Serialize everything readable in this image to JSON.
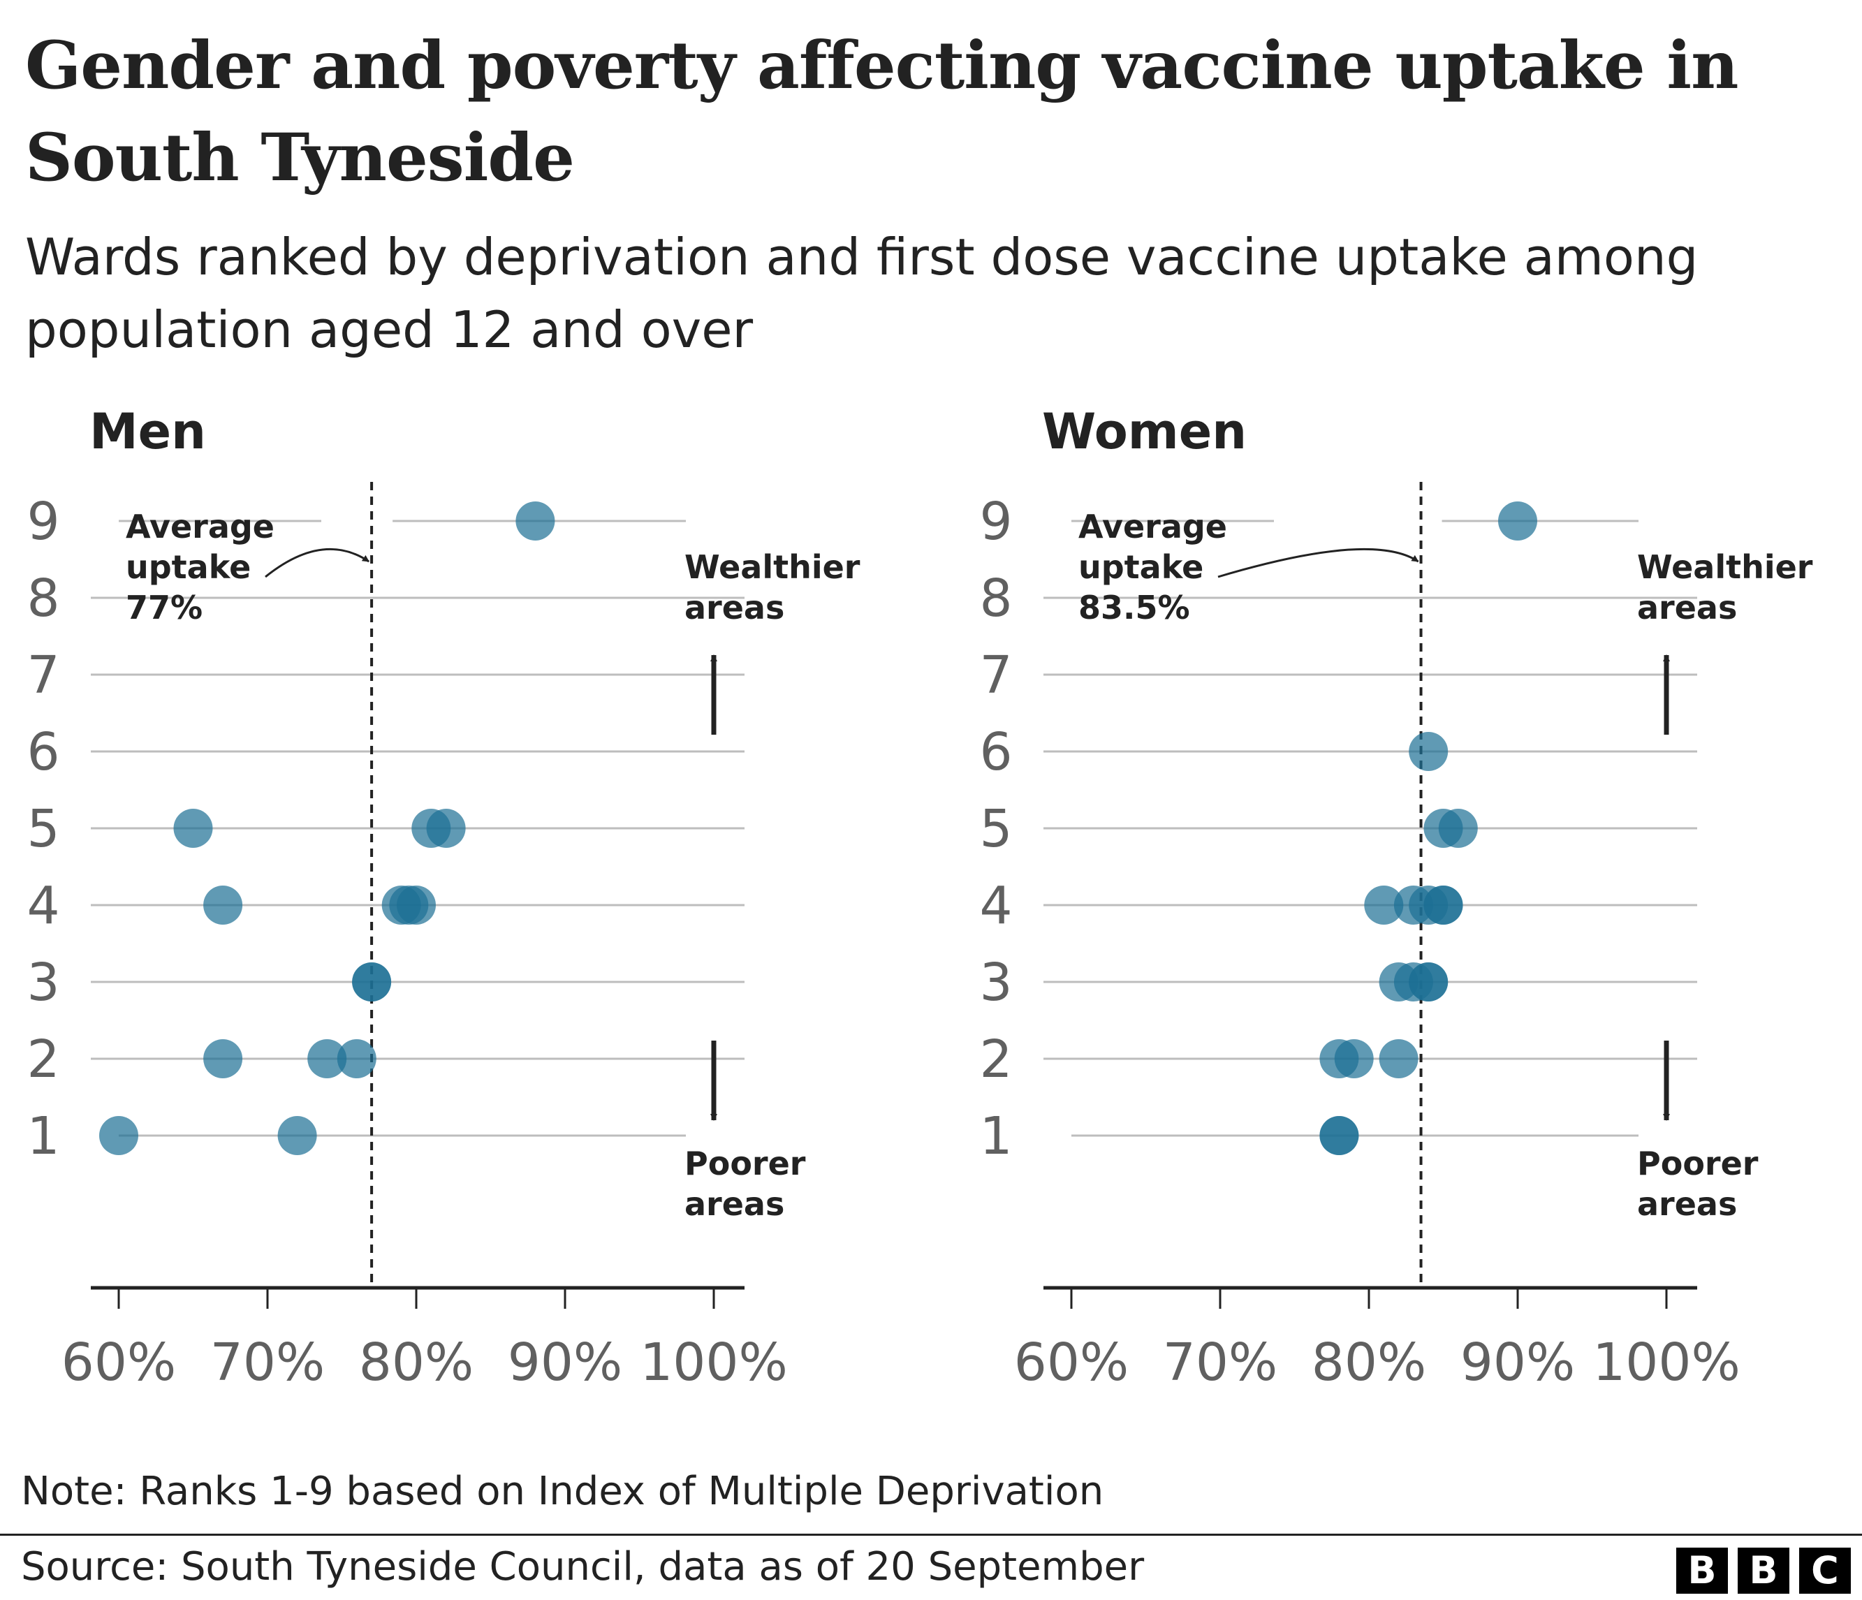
{
  "header": {
    "title": "Gender and poverty affecting vaccine uptake in South Tyneside",
    "subtitle": "Wards ranked by deprivation and first dose vaccine uptake among population aged 12 and over"
  },
  "footer": {
    "note": "Note: Ranks 1-9 based on Index of Multiple Deprivation",
    "source": "Source: South Tyneside Council, data as of 20 September",
    "logo_letters": [
      "B",
      "B",
      "C"
    ]
  },
  "colors": {
    "dot": "#1d6f94",
    "gridline": "#bdbdbd",
    "axis": "#222222",
    "tick_label": "#606060",
    "text": "#222222"
  },
  "chart_data": [
    {
      "type": "scatter",
      "title": "Men",
      "xlim": [
        60,
        100
      ],
      "ylim": [
        1,
        9
      ],
      "x_ticks": [
        "60%",
        "70%",
        "80%",
        "90%",
        "100%"
      ],
      "y_ticks": [
        "1",
        "2",
        "3",
        "4",
        "5",
        "6",
        "7",
        "8",
        "9"
      ],
      "average": {
        "value": 77,
        "label": [
          "Average",
          "uptake",
          "77%"
        ]
      },
      "direction_labels": {
        "up": [
          "Wealthier",
          "areas"
        ],
        "down": [
          "Poorer",
          "areas"
        ]
      },
      "points": [
        {
          "rank": 9,
          "uptake": 88
        },
        {
          "rank": 5,
          "uptake": 65
        },
        {
          "rank": 5,
          "uptake": 81
        },
        {
          "rank": 5,
          "uptake": 82
        },
        {
          "rank": 4,
          "uptake": 67
        },
        {
          "rank": 4,
          "uptake": 79
        },
        {
          "rank": 4,
          "uptake": 79.5
        },
        {
          "rank": 4,
          "uptake": 80
        },
        {
          "rank": 3,
          "uptake": 77
        },
        {
          "rank": 3,
          "uptake": 77
        },
        {
          "rank": 2,
          "uptake": 67
        },
        {
          "rank": 2,
          "uptake": 74
        },
        {
          "rank": 2,
          "uptake": 76
        },
        {
          "rank": 1,
          "uptake": 60
        },
        {
          "rank": 1,
          "uptake": 72
        }
      ]
    },
    {
      "type": "scatter",
      "title": "Women",
      "xlim": [
        60,
        100
      ],
      "ylim": [
        1,
        9
      ],
      "x_ticks": [
        "60%",
        "70%",
        "80%",
        "90%",
        "100%"
      ],
      "y_ticks": [
        "1",
        "2",
        "3",
        "4",
        "5",
        "6",
        "7",
        "8",
        "9"
      ],
      "average": {
        "value": 83.5,
        "label": [
          "Average",
          "uptake",
          "83.5%"
        ]
      },
      "direction_labels": {
        "up": [
          "Wealthier",
          "areas"
        ],
        "down": [
          "Poorer",
          "areas"
        ]
      },
      "points": [
        {
          "rank": 9,
          "uptake": 90
        },
        {
          "rank": 6,
          "uptake": 84
        },
        {
          "rank": 5,
          "uptake": 85
        },
        {
          "rank": 5,
          "uptake": 86
        },
        {
          "rank": 4,
          "uptake": 81
        },
        {
          "rank": 4,
          "uptake": 83
        },
        {
          "rank": 4,
          "uptake": 84
        },
        {
          "rank": 4,
          "uptake": 85
        },
        {
          "rank": 4,
          "uptake": 85
        },
        {
          "rank": 3,
          "uptake": 82
        },
        {
          "rank": 3,
          "uptake": 83
        },
        {
          "rank": 3,
          "uptake": 84
        },
        {
          "rank": 3,
          "uptake": 84
        },
        {
          "rank": 2,
          "uptake": 78
        },
        {
          "rank": 2,
          "uptake": 79
        },
        {
          "rank": 2,
          "uptake": 82
        },
        {
          "rank": 1,
          "uptake": 78
        },
        {
          "rank": 1,
          "uptake": 78
        }
      ]
    }
  ]
}
